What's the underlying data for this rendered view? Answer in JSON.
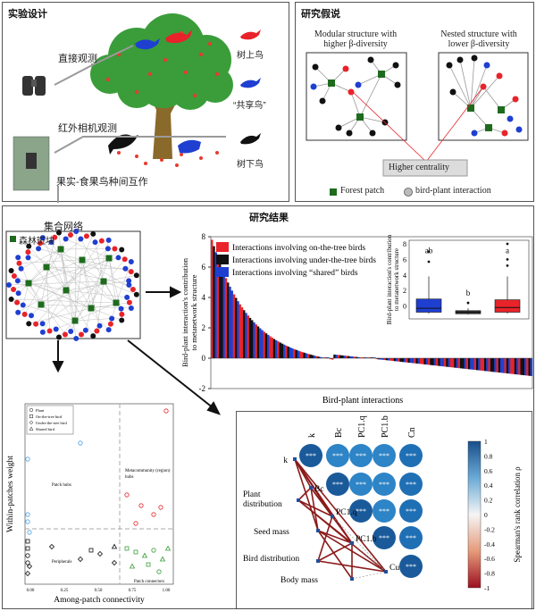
{
  "panels": {
    "design": {
      "title": "实验设计",
      "direct_obs": "直接观测",
      "camera_obs": "红外相机观测",
      "interaction": "果实-食果鸟种间互作",
      "legend": {
        "on_tree": "树上鸟",
        "shared": "“共享鸟”",
        "under_tree": "树下鸟"
      }
    },
    "hypothesis": {
      "title": "研究假说",
      "modular_title": "Modular structure with\nhigher β-diversity",
      "nested_title": "Nested structure with\nlower β-diversity",
      "centrality": "Higher centrality",
      "legend_patch": "Forest patch",
      "legend_interaction": "bird-plant interaction"
    },
    "results": {
      "title": "研究结果",
      "meta_title": "集合网络",
      "meta_legend": "森林斑块"
    }
  },
  "colors": {
    "on_tree": "#e8232a",
    "under_tree": "#111111",
    "shared": "#1f3fd1",
    "tree_green": "#3a9d3a",
    "patch_green": "#1e6b1e",
    "trunk": "#8a6a2a",
    "fruit": "#e63b2e"
  },
  "chart_data": [
    {
      "type": "bar",
      "title": "",
      "xlabel": "Bird-plant interactions",
      "ylabel": "Bird-plant interaction's contribution\nto metanetwork structure",
      "ylim": [
        -2,
        8
      ],
      "yticks": [
        "8",
        "6",
        "4",
        "2",
        "0",
        "-2"
      ],
      "legend": [
        "Interactions involving on-the-tree birds",
        "Interactions involving under-the-tree birds",
        "Interactions involving “shared” birds"
      ],
      "inset": {
        "type": "box",
        "ylabel": "Bird-plant interaction's contribution\nto metanetwork structure",
        "yticks": [
          "8",
          "6",
          "4",
          "2",
          "0"
        ],
        "groups": [
          "shared",
          "under-the-tree",
          "on-the-tree"
        ],
        "letters": [
          "ab",
          "b",
          "a"
        ],
        "medians": [
          -0.3,
          -0.8,
          -0.2
        ],
        "q1": [
          -0.8,
          -1.0,
          -0.8
        ],
        "q3": [
          0.9,
          -0.6,
          0.8
        ],
        "whisker_low": [
          -1.0,
          -1.1,
          -1.0
        ],
        "whisker_high": [
          3.8,
          -0.3,
          3.8
        ],
        "outliers": [
          [
            5.7,
            7.0
          ],
          [
            0.4
          ],
          [
            5.2,
            6.0,
            8.0
          ]
        ]
      }
    },
    {
      "type": "scatter",
      "xlabel": "Among-patch connectivity",
      "ylabel": "Within-patches weight",
      "xticks": [
        "0.00",
        "0.25",
        "0.50",
        "0.75",
        "1.00"
      ],
      "legend": [
        "Plant",
        "On-the-tree bird",
        "Under-the-tree bird",
        "Shared bird"
      ],
      "regions": [
        "Patch hubs",
        "Metacommunity (region)\nhubs",
        "Peripherals",
        "Patch connectors"
      ]
    },
    {
      "type": "heatmap",
      "columns": [
        "k",
        "Bc",
        "PC1.q",
        "PC1.b",
        "Cn"
      ],
      "rows": [
        "k",
        "Bc",
        "PC1.q",
        "PC1.b",
        "Cn"
      ],
      "cell_label": "***",
      "colorbar_label": "Spearman's rank correlation ρ",
      "colorbar_ticks": [
        "1",
        "0.8",
        "0.6",
        "0.4",
        "0.2",
        "0",
        "-0.2",
        "-0.4",
        "-0.6",
        "-0.8",
        "-1"
      ],
      "network_nodes": [
        "k",
        "Bc",
        "Plant\ndistribution",
        "PC1.q",
        "Seed mass",
        "PC1.b",
        "Bird distribution",
        "Cu",
        "Body mass"
      ]
    }
  ]
}
